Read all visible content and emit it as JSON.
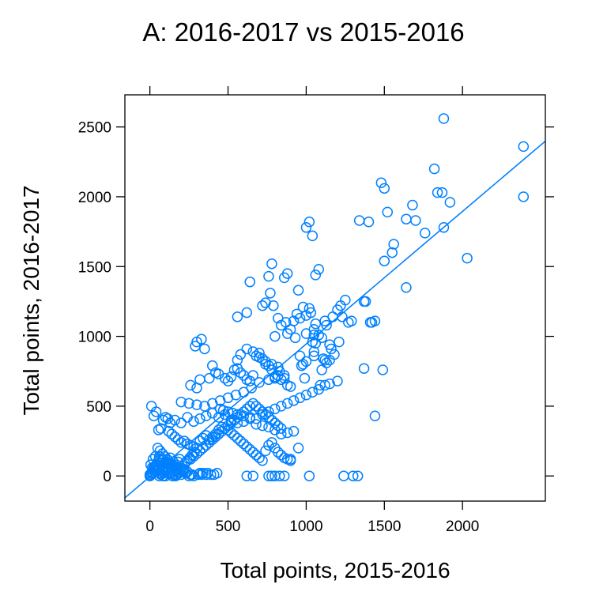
{
  "chart_data": {
    "type": "scatter",
    "title": "A: 2016-2017 vs 2015-2016",
    "xlabel": "Total points, 2015-2016",
    "ylabel": "Total points, 2016-2017",
    "xlim": [
      -160,
      2530
    ],
    "ylim": [
      -180,
      2730
    ],
    "xticks": [
      0,
      500,
      1000,
      1500,
      2000
    ],
    "yticks": [
      0,
      500,
      1000,
      1500,
      2000,
      2500
    ],
    "grid": false,
    "marker_color": "#0080ff",
    "fit_line": {
      "intercept": -5,
      "slope": 0.95
    },
    "x": [
      1880,
      2390,
      2390,
      1820,
      1870,
      1920,
      1480,
      1500,
      1520,
      1680,
      1700,
      1640,
      1560,
      1550,
      1500,
      1760,
      1880,
      1840,
      1640,
      2030,
      1340,
      1370,
      1400,
      1290,
      1250,
      1230,
      1120,
      1080,
      1060,
      1040,
      1020,
      1000,
      980,
      950,
      1000,
      1060,
      1130,
      1170,
      1200,
      1220,
      1270,
      1380,
      1420,
      1440,
      1410,
      1490,
      1440,
      1370,
      1210,
      1150,
      1130,
      1100,
      1050,
      1090,
      960,
      1030,
      1050,
      1050,
      880,
      860,
      780,
      760,
      790,
      770,
      640,
      560,
      620,
      720,
      740,
      820,
      900,
      870,
      920,
      960,
      940,
      1020,
      840,
      880,
      800,
      930,
      1000,
      1040,
      1060,
      1080,
      1100,
      1150,
      1160,
      1180,
      1110,
      1120,
      1050,
      1000,
      980,
      970,
      300,
      330,
      290,
      350,
      400,
      380,
      260,
      300,
      320,
      420,
      440,
      480,
      500,
      520,
      540,
      560,
      580,
      600,
      620,
      640,
      660,
      680,
      700,
      720,
      740,
      760,
      780,
      800,
      820,
      840,
      860,
      880,
      900,
      560,
      580,
      620,
      660,
      700,
      740,
      780,
      820,
      650,
      600,
      550,
      500,
      450,
      400,
      350,
      300,
      250,
      200,
      450,
      470,
      500,
      530,
      560,
      600,
      640,
      680,
      720,
      760,
      800,
      840,
      880,
      920,
      960,
      1000,
      1040,
      1080,
      1120,
      1150,
      1200,
      990,
      860,
      830,
      800,
      760,
      700,
      160,
      200,
      240,
      280,
      320,
      360,
      400,
      440,
      480,
      520,
      560,
      600,
      640,
      680,
      720,
      760,
      800,
      840,
      880,
      920,
      120,
      140,
      160,
      180,
      200,
      220,
      240,
      260,
      280,
      300,
      320,
      340,
      360,
      380,
      400,
      420,
      440,
      460,
      480,
      500,
      520,
      540,
      560,
      580,
      600,
      620,
      640,
      660,
      680,
      700,
      720,
      740,
      760,
      780,
      800,
      820,
      840,
      860,
      880,
      900,
      60,
      80,
      100,
      120,
      140,
      160,
      180,
      200,
      220,
      240,
      260,
      280,
      300,
      320,
      340,
      360,
      380,
      400,
      420,
      440,
      460,
      480,
      500,
      520,
      540,
      560,
      580,
      600,
      620,
      640,
      660,
      680,
      700,
      720,
      740,
      760,
      780,
      800,
      820,
      840,
      0,
      10,
      20,
      30,
      40,
      50,
      60,
      70,
      80,
      90,
      100,
      110,
      120,
      130,
      140,
      150,
      160,
      170,
      180,
      190,
      0,
      15,
      30,
      45,
      60,
      75,
      90,
      105,
      120,
      135,
      150,
      165,
      180,
      195,
      210,
      225,
      240,
      255,
      270,
      285,
      10,
      25,
      40,
      55,
      70,
      85,
      100,
      115,
      130,
      145,
      0,
      5,
      15,
      20,
      35,
      50,
      65,
      80,
      95,
      110,
      20,
      30,
      40,
      50,
      60,
      70,
      80,
      90,
      100,
      110,
      5,
      25,
      45,
      65,
      85,
      105,
      125,
      145,
      165,
      185,
      330,
      360,
      370,
      320,
      260,
      250,
      280,
      200,
      180,
      150,
      130,
      170,
      210,
      230,
      270,
      310,
      340,
      390,
      410,
      430,
      620,
      830,
      860,
      900,
      950,
      780,
      800,
      760,
      660,
      1020,
      1240,
      1300,
      1330
    ],
    "y": [
      2560,
      2360,
      2000,
      2200,
      2030,
      1960,
      2100,
      2060,
      1890,
      1940,
      1830,
      1840,
      1660,
      1600,
      1540,
      1740,
      1780,
      2030,
      1350,
      1560,
      1830,
      1250,
      1820,
      1110,
      1260,
      1140,
      1110,
      1480,
      1440,
      1720,
      1820,
      1780,
      1210,
      1330,
      1150,
      1090,
      1080,
      1140,
      1190,
      1220,
      1100,
      1250,
      1100,
      1110,
      1100,
      760,
      430,
      770,
      960,
      830,
      810,
      760,
      890,
      650,
      860,
      1170,
      1050,
      1010,
      1450,
      1420,
      1520,
      1430,
      1220,
      1310,
      1390,
      1140,
      1170,
      1220,
      1240,
      1130,
      1050,
      1100,
      1110,
      1130,
      1160,
      1200,
      1080,
      1020,
      1000,
      990,
      1020,
      960,
      950,
      1010,
      990,
      940,
      910,
      870,
      840,
      830,
      860,
      820,
      800,
      790,
      960,
      980,
      930,
      910,
      790,
      700,
      650,
      630,
      690,
      740,
      730,
      700,
      680,
      710,
      760,
      770,
      740,
      720,
      690,
      680,
      720,
      860,
      880,
      840,
      800,
      790,
      760,
      700,
      720,
      690,
      700,
      650,
      640,
      830,
      870,
      910,
      890,
      850,
      820,
      800,
      780,
      630,
      600,
      580,
      560,
      540,
      520,
      500,
      510,
      520,
      530,
      480,
      470,
      460,
      450,
      440,
      430,
      420,
      410,
      440,
      460,
      480,
      500,
      520,
      540,
      560,
      580,
      600,
      620,
      650,
      660,
      680,
      700,
      720,
      750,
      710,
      690,
      670,
      400,
      380,
      420,
      390,
      410,
      430,
      450,
      420,
      440,
      400,
      380,
      390,
      410,
      370,
      360,
      350,
      330,
      300,
      310,
      320,
      320,
      300,
      280,
      260,
      240,
      250,
      230,
      220,
      210,
      200,
      250,
      270,
      290,
      260,
      280,
      300,
      330,
      350,
      340,
      330,
      310,
      290,
      270,
      250,
      230,
      210,
      190,
      170,
      150,
      130,
      110,
      180,
      220,
      240,
      200,
      170,
      150,
      130,
      120,
      110,
      140,
      120,
      100,
      90,
      80,
      70,
      60,
      50,
      40,
      30,
      120,
      140,
      160,
      180,
      200,
      220,
      240,
      260,
      280,
      300,
      320,
      340,
      360,
      380,
      400,
      420,
      440,
      460,
      480,
      500,
      520,
      500,
      480,
      460,
      440,
      420,
      400,
      380,
      360,
      340,
      0,
      20,
      40,
      60,
      80,
      100,
      120,
      10,
      30,
      50,
      70,
      90,
      110,
      130,
      20,
      40,
      60,
      80,
      100,
      120,
      10,
      30,
      50,
      70,
      90,
      110,
      20,
      40,
      60,
      80,
      100,
      0,
      30,
      50,
      70,
      90,
      110,
      130,
      150,
      170,
      500,
      430,
      460,
      330,
      340,
      400,
      420,
      410,
      380,
      0,
      0,
      10,
      60,
      120,
      140,
      200,
      180,
      160,
      140,
      120,
      20,
      40,
      60,
      80,
      0,
      20,
      40,
      60,
      0,
      20,
      80,
      60,
      40,
      20,
      0,
      100,
      80,
      60,
      40,
      20,
      10,
      10,
      20,
      20,
      10,
      0,
      0,
      10,
      30,
      10,
      20,
      10,
      30,
      20,
      10,
      10,
      20,
      10,
      10,
      20,
      0,
      0,
      0,
      120,
      200,
      0,
      0,
      0,
      0,
      0,
      0,
      0,
      0
    ]
  }
}
